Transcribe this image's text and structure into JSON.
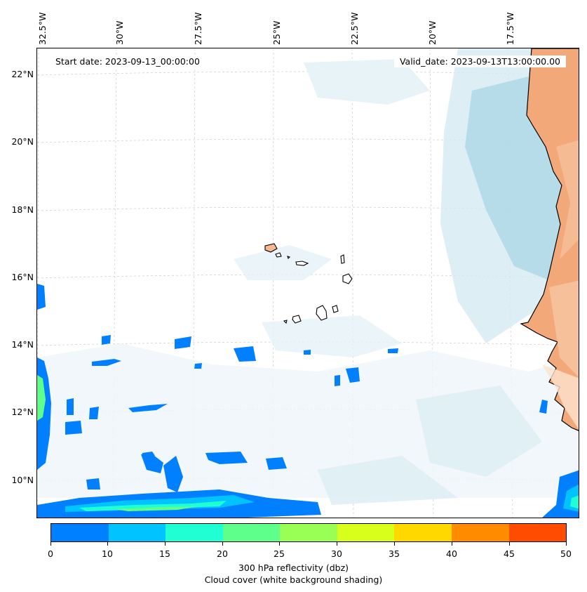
{
  "header": {
    "start_date": "Start date: 2023-09-13_00:00:00",
    "valid_date": "Valid_date: 2023-09-13T13:00:00.00"
  },
  "lon_labels": [
    "32.5°W",
    "30°W",
    "27.5°W",
    "25°W",
    "22.5°W",
    "20°W",
    "17.5°W"
  ],
  "lat_labels": [
    "22°N",
    "20°N",
    "18°N",
    "16°N",
    "14°N",
    "12°N",
    "10°N"
  ],
  "colorbar": {
    "ticks": [
      "0",
      "10",
      "15",
      "20",
      "25",
      "30",
      "35",
      "40",
      "45",
      "50"
    ],
    "colors": [
      "#0080ff",
      "#00c3ff",
      "#1fffd3",
      "#5fff8c",
      "#99ff55",
      "#d8ff1c",
      "#ffd800",
      "#ff8c00",
      "#ff4c00"
    ],
    "label_line1": "300 hPa reflectivity (dbz)",
    "label_line2": "Cloud cover (white background shading)"
  },
  "colors": {
    "land": "#f2a878",
    "cloud": "#a9d6e4",
    "coast": "#000000",
    "grid": "#cccccc"
  }
}
